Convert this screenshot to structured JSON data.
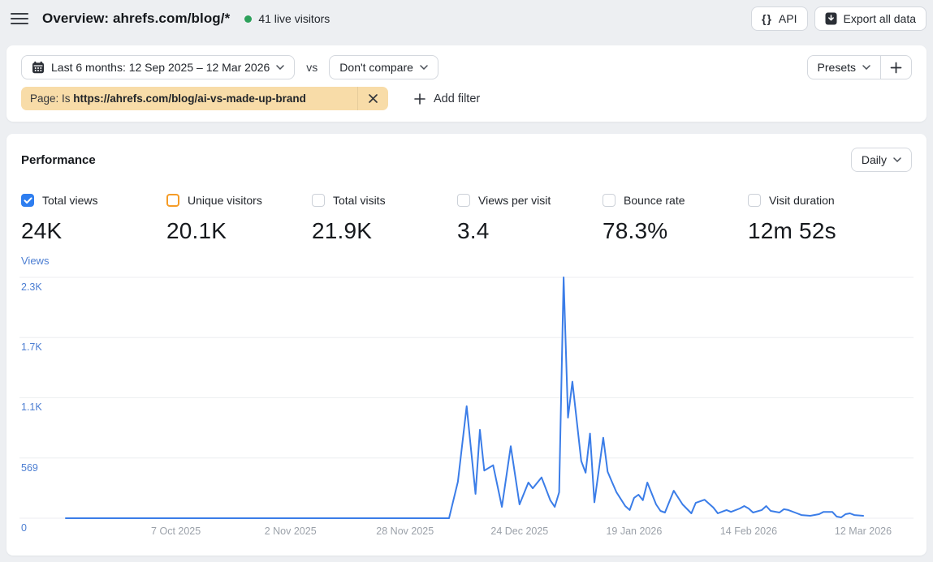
{
  "topbar": {
    "title": "Overview: ahrefs.com/blog/*",
    "live_visitors": "41 live visitors",
    "api_label": "API",
    "api_icon_glyph": "{}",
    "export_label": "Export all data"
  },
  "filters": {
    "date_range": "Last 6 months: 12 Sep 2025 – 12 Mar 2026",
    "vs_label": "vs",
    "compare": "Don't compare",
    "presets_label": "Presets",
    "add_preset_glyph": "+",
    "chip_prefix": "Page: Is",
    "chip_value": "https://ahrefs.com/blog/ai-vs-made-up-brand",
    "add_filter_label": "Add filter"
  },
  "performance": {
    "title": "Performance",
    "granularity": "Daily",
    "metrics": [
      {
        "label": "Total views",
        "value": "24K",
        "checkbox": "checked"
      },
      {
        "label": "Unique visitors",
        "value": "20.1K",
        "checkbox": "orange"
      },
      {
        "label": "Total visits",
        "value": "21.9K",
        "checkbox": "default"
      },
      {
        "label": "Views per visit",
        "value": "3.4",
        "checkbox": "default"
      },
      {
        "label": "Bounce rate",
        "value": "78.3%",
        "checkbox": "default"
      },
      {
        "label": "Visit duration",
        "value": "12m 52s",
        "checkbox": "default"
      }
    ]
  },
  "chart_data": {
    "type": "line",
    "title": "Views",
    "ylabel": "Views",
    "series_name": "Total views",
    "line_color": "#3b7de8",
    "grid_color": "#eceef0",
    "axis_label_color": "#4c7ed2",
    "x_tick_color": "#9ba1a9",
    "grid": true,
    "legend_position": "none",
    "x_range": [
      "2025-09-12",
      "2026-03-12"
    ],
    "ylim": [
      0,
      2275
    ],
    "y_ticks": [
      {
        "value": 0,
        "label": "0"
      },
      {
        "value": 569,
        "label": "569"
      },
      {
        "value": 1138,
        "label": "1.1K"
      },
      {
        "value": 1706,
        "label": "1.7K"
      },
      {
        "value": 2275,
        "label": "2.3K"
      }
    ],
    "x_ticks": [
      {
        "date": "2025-10-07",
        "label": "7 Oct 2025"
      },
      {
        "date": "2025-11-02",
        "label": "2 Nov 2025"
      },
      {
        "date": "2025-11-28",
        "label": "28 Nov 2025"
      },
      {
        "date": "2025-12-24",
        "label": "24 Dec 2025"
      },
      {
        "date": "2026-01-19",
        "label": "19 Jan 2026"
      },
      {
        "date": "2026-02-14",
        "label": "14 Feb 2026"
      },
      {
        "date": "2026-03-12",
        "label": "12 Mar 2026"
      }
    ],
    "points": [
      [
        "2025-09-12",
        0
      ],
      [
        "2025-10-15",
        0
      ],
      [
        "2025-11-20",
        0
      ],
      [
        "2025-12-08",
        0
      ],
      [
        "2025-12-10",
        345
      ],
      [
        "2025-12-12",
        1058
      ],
      [
        "2025-12-14",
        230
      ],
      [
        "2025-12-15",
        835
      ],
      [
        "2025-12-16",
        450
      ],
      [
        "2025-12-18",
        500
      ],
      [
        "2025-12-20",
        107
      ],
      [
        "2025-12-22",
        680
      ],
      [
        "2025-12-24",
        130
      ],
      [
        "2025-12-26",
        337
      ],
      [
        "2025-12-27",
        283
      ],
      [
        "2025-12-29",
        385
      ],
      [
        "2025-12-31",
        168
      ],
      [
        "2026-01-01",
        107
      ],
      [
        "2026-01-02",
        245
      ],
      [
        "2026-01-03",
        2275
      ],
      [
        "2026-01-04",
        950
      ],
      [
        "2026-01-05",
        1290
      ],
      [
        "2026-01-07",
        540
      ],
      [
        "2026-01-08",
        430
      ],
      [
        "2026-01-09",
        800
      ],
      [
        "2026-01-10",
        150
      ],
      [
        "2026-01-12",
        760
      ],
      [
        "2026-01-13",
        440
      ],
      [
        "2026-01-14",
        340
      ],
      [
        "2026-01-15",
        245
      ],
      [
        "2026-01-17",
        115
      ],
      [
        "2026-01-18",
        77
      ],
      [
        "2026-01-19",
        192
      ],
      [
        "2026-01-20",
        222
      ],
      [
        "2026-01-21",
        170
      ],
      [
        "2026-01-22",
        337
      ],
      [
        "2026-01-24",
        130
      ],
      [
        "2026-01-25",
        69
      ],
      [
        "2026-01-26",
        54
      ],
      [
        "2026-01-28",
        260
      ],
      [
        "2026-01-30",
        130
      ],
      [
        "2026-02-01",
        46
      ],
      [
        "2026-02-02",
        145
      ],
      [
        "2026-02-04",
        175
      ],
      [
        "2026-02-06",
        100
      ],
      [
        "2026-02-07",
        46
      ],
      [
        "2026-02-09",
        77
      ],
      [
        "2026-02-10",
        60
      ],
      [
        "2026-02-12",
        92
      ],
      [
        "2026-02-13",
        115
      ],
      [
        "2026-02-14",
        92
      ],
      [
        "2026-02-15",
        54
      ],
      [
        "2026-02-17",
        77
      ],
      [
        "2026-02-18",
        115
      ],
      [
        "2026-02-19",
        69
      ],
      [
        "2026-02-21",
        54
      ],
      [
        "2026-02-22",
        85
      ],
      [
        "2026-02-23",
        77
      ],
      [
        "2026-02-25",
        46
      ],
      [
        "2026-02-26",
        30
      ],
      [
        "2026-02-28",
        23
      ],
      [
        "2026-03-02",
        38
      ],
      [
        "2026-03-03",
        60
      ],
      [
        "2026-03-05",
        60
      ],
      [
        "2026-03-06",
        15
      ],
      [
        "2026-03-07",
        8
      ],
      [
        "2026-03-08",
        38
      ],
      [
        "2026-03-09",
        46
      ],
      [
        "2026-03-10",
        30
      ],
      [
        "2026-03-12",
        23
      ]
    ]
  },
  "colors": {
    "accent_blue": "#2e7ef0",
    "accent_orange": "#f59c27",
    "chip_bg": "#f8dca8",
    "live_green": "#2ca05a",
    "page_bg": "#edeff2"
  }
}
